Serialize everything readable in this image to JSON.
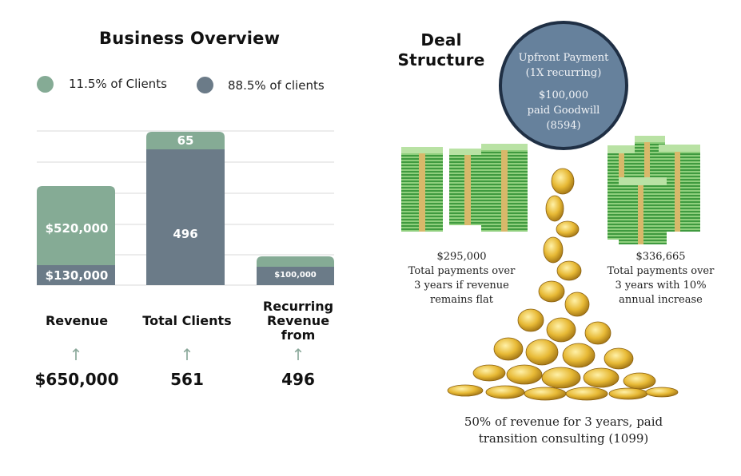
{
  "overview": {
    "title": "Business Overview",
    "legend": [
      {
        "label": "11.5% of Clients",
        "color": "#85ab95"
      },
      {
        "label": "88.5% of clients",
        "color": "#6b7b88"
      }
    ]
  },
  "chart_data": {
    "type": "bar",
    "stacked": true,
    "grid": true,
    "categories": [
      "Revenue",
      "Total Clients",
      "Recurring\nRevenue\nfrom"
    ],
    "series": [
      {
        "name": "88.5% of clients",
        "color": "#6b7b88",
        "labels": [
          "$130,000",
          "496",
          "$100,000"
        ]
      },
      {
        "name": "11.5% of Clients",
        "color": "#85ab95",
        "labels": [
          "$520,000",
          "65",
          ""
        ]
      }
    ],
    "totals": [
      "$650,000",
      "561",
      "496"
    ]
  },
  "deal": {
    "title": "Deal Structure",
    "upfront": {
      "line1": "Upfront Payment",
      "line2": "(1X recurring)",
      "line3": "$100,000",
      "line4": "paid Goodwill",
      "line5": "(8594)"
    },
    "flat": {
      "amount": "$295,000",
      "line1": "Total payments over",
      "line2": "3 years if revenue",
      "line3": "remains flat"
    },
    "increase": {
      "amount": "$336,665",
      "line1": "Total payments over",
      "line2": "3 years with 10%",
      "line3": "annual increase"
    },
    "footer": {
      "line1": "50% of revenue for 3 years, paid",
      "line2": "transition consulting (1099)"
    }
  },
  "icons": [
    "money-stack-icon",
    "coin-pile-icon",
    "arrow-up-icon"
  ]
}
